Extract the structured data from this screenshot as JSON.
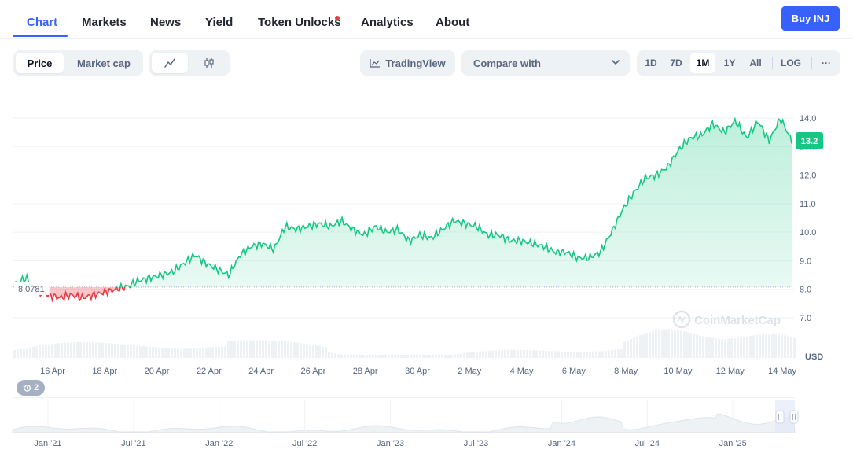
{
  "tabs": [
    {
      "label": "Chart",
      "active": true
    },
    {
      "label": "Markets"
    },
    {
      "label": "News"
    },
    {
      "label": "Yield"
    },
    {
      "label": "Token Unlocks",
      "has_dot": true
    },
    {
      "label": "Analytics"
    },
    {
      "label": "About"
    }
  ],
  "buy_button": "Buy INJ",
  "toolbar": {
    "view_toggle": [
      "Price",
      "Market cap"
    ],
    "view_active": "Price",
    "chart_style": [
      "line-chart-icon",
      "candlestick-icon"
    ],
    "tradingview_label": "TradingView",
    "compare_label": "Compare with",
    "ranges": [
      "1D",
      "7D",
      "1M",
      "1Y",
      "All"
    ],
    "range_active": "1M",
    "log_label": "LOG",
    "more_label": "···"
  },
  "chart_data": {
    "type": "area",
    "x_tick_labels": [
      "16 Apr",
      "18 Apr",
      "20 Apr",
      "22 Apr",
      "24 Apr",
      "26 Apr",
      "28 Apr",
      "30 Apr",
      "2 May",
      "4 May",
      "6 May",
      "8 May",
      "10 May",
      "12 May",
      "14 May"
    ],
    "y_tick_labels": [
      "7.0",
      "8.0",
      "9.0",
      "10.0",
      "11.0",
      "12.0",
      "13.0",
      "14.0"
    ],
    "ylim": [
      6.2,
      14.6
    ],
    "y_unit": "USD",
    "baseline_value": 8.0781,
    "baseline_label": "8.0781",
    "current_price_label": "13.2",
    "watermark": "CoinMarketCap",
    "series": [
      {
        "values": [
          8.2,
          8.4,
          7.9,
          7.8,
          7.7,
          7.8,
          7.7,
          7.8,
          7.9,
          8.0,
          8.1,
          8.3,
          8.4,
          8.5,
          8.6,
          8.9,
          9.2,
          8.9,
          8.7,
          8.5,
          9.2,
          9.5,
          9.6,
          9.4,
          10.2,
          10.1,
          10.2,
          10.3,
          10.2,
          10.4,
          10.1,
          9.9,
          10.2,
          10.0,
          10.1,
          9.7,
          9.9,
          9.8,
          10.1,
          10.4,
          10.3,
          10.2,
          9.9,
          9.9,
          9.7,
          9.7,
          9.6,
          9.5,
          9.3,
          9.3,
          9.1,
          9.1,
          9.3,
          10.0,
          10.8,
          11.4,
          11.9,
          12.0,
          12.3,
          12.9,
          13.3,
          13.4,
          13.8,
          13.5,
          13.9,
          13.3,
          13.9,
          13.2,
          14.0,
          13.2
        ]
      }
    ]
  },
  "history_badge": "2",
  "navigator": {
    "x_tick_labels": [
      "Jan '21",
      "Jul '21",
      "Jan '22",
      "Jul '22",
      "Jan '23",
      "Jul '23",
      "Jan '24",
      "Jul '24",
      "Jan '25"
    ]
  }
}
